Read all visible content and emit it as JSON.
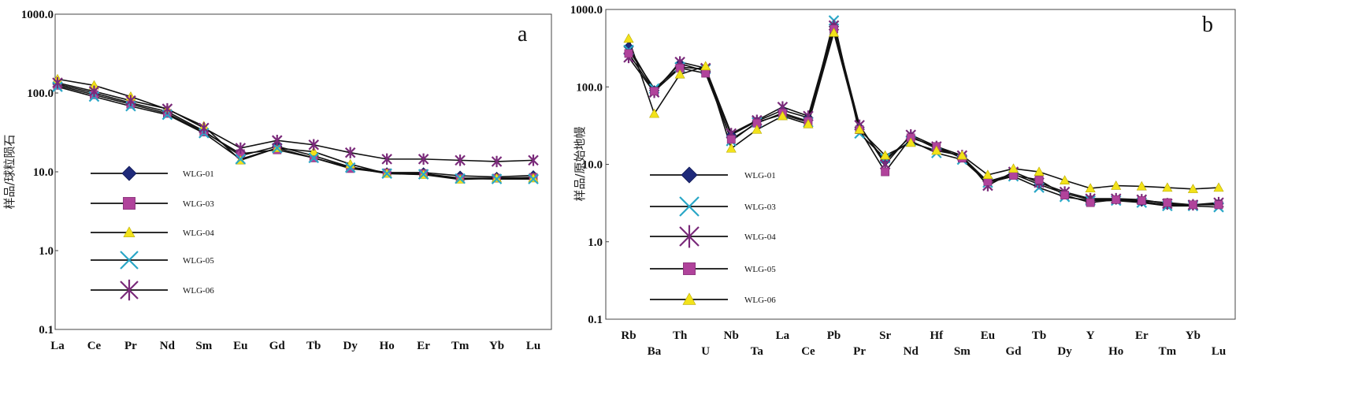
{
  "chart_data": [
    {
      "type": "line",
      "panel_label": "a",
      "ylabel": "样品/球粒陨石",
      "yscale": "log",
      "ylim": [
        0.1,
        1000
      ],
      "ytick_labels": [
        "1000.0",
        "100.0",
        "10.0",
        "1.0",
        "0.1"
      ],
      "grid": false,
      "legend_position": "bottom-left",
      "categories": [
        "La",
        "Ce",
        "Pr",
        "Nd",
        "Sm",
        "Eu",
        "Gd",
        "Tb",
        "Dy",
        "Ho",
        "Er",
        "Tm",
        "Yb",
        "Lu"
      ],
      "series": [
        {
          "name": "WLG-01",
          "marker": "diamond",
          "color": "#1f2a7a",
          "values": [
            130,
            100,
            75,
            58,
            33,
            16,
            21,
            16,
            11.5,
            9.8,
            9.8,
            8.9,
            8.6,
            9.0
          ]
        },
        {
          "name": "WLG-03",
          "marker": "square",
          "color": "#b0439b",
          "values": [
            125,
            95,
            72,
            55,
            32,
            17,
            19,
            15,
            11.0,
            9.7,
            9.5,
            8.3,
            8.3,
            8.5
          ]
        },
        {
          "name": "WLG-04",
          "marker": "triangle",
          "color": "#f2e21a",
          "values": [
            150,
            125,
            90,
            62,
            38,
            14,
            20,
            18,
            12.5,
            9.5,
            9.2,
            8.0,
            8.3,
            8.3
          ]
        },
        {
          "name": "WLG-05",
          "marker": "x",
          "color": "#2aa7c7",
          "values": [
            120,
            90,
            68,
            53,
            31,
            14.5,
            20,
            15,
            11.3,
            9.5,
            9.3,
            8.2,
            8.1,
            8.1
          ]
        },
        {
          "name": "WLG-06",
          "marker": "asterisk",
          "color": "#7a2a7a",
          "values": [
            135,
            105,
            80,
            63,
            36,
            20,
            25,
            22,
            17.5,
            14.5,
            14.5,
            14,
            13.5,
            14
          ]
        }
      ]
    },
    {
      "type": "line",
      "panel_label": "b",
      "ylabel": "样品/原始地幔",
      "yscale": "log",
      "ylim": [
        0.1,
        1000
      ],
      "ytick_labels": [
        "1000.0",
        "100.0",
        "10.0",
        "1.0",
        "0.1"
      ],
      "grid": false,
      "legend_position": "bottom-left",
      "categories": [
        "Rb",
        "Ba",
        "Th",
        "U",
        "Nb",
        "Ta",
        "La",
        "Ce",
        "Pb",
        "Pr",
        "Sr",
        "Nd",
        "Hf",
        "Sm",
        "Eu",
        "Gd",
        "Tb",
        "Dy",
        "Y",
        "Ho",
        "Er",
        "Tm",
        "Yb",
        "Lu"
      ],
      "series": [
        {
          "name": "WLG-01",
          "marker": "diamond",
          "color": "#1f2a7a",
          "values": [
            330,
            90,
            200,
            160,
            24,
            36,
            50,
            40,
            600,
            30,
            11,
            23,
            16,
            12.5,
            6.0,
            7.5,
            5.5,
            4.2,
            3.5,
            3.5,
            3.3,
            3.0,
            3.0,
            3.1
          ]
        },
        {
          "name": "WLG-03",
          "marker": "x",
          "color": "#2aa7c7",
          "values": [
            300,
            95,
            180,
            170,
            20,
            35,
            44,
            35,
            720,
            25,
            12,
            20,
            14,
            11.5,
            5.8,
            7.0,
            5.0,
            3.8,
            3.4,
            3.4,
            3.2,
            2.9,
            2.9,
            2.8
          ]
        },
        {
          "name": "WLG-04",
          "marker": "asterisk",
          "color": "#7a2a7a",
          "values": [
            240,
            85,
            210,
            175,
            25,
            37,
            55,
            42,
            620,
            32,
            10,
            24,
            17,
            13,
            5.3,
            8.0,
            5.8,
            4.4,
            3.6,
            3.6,
            3.5,
            3.1,
            3.0,
            3.2
          ]
        },
        {
          "name": "WLG-05",
          "marker": "square",
          "color": "#b0439b",
          "values": [
            270,
            88,
            175,
            150,
            21,
            34,
            46,
            36,
            560,
            28,
            8,
            22,
            17,
            12,
            6.0,
            7.2,
            6.3,
            4.0,
            3.2,
            3.5,
            3.4,
            3.2,
            3.0,
            3.0
          ]
        },
        {
          "name": "WLG-06",
          "marker": "triangle",
          "color": "#f2e21a",
          "values": [
            420,
            45,
            145,
            185,
            16,
            28,
            42,
            33,
            500,
            28,
            13,
            19,
            15,
            13,
            7.3,
            8.8,
            8.0,
            6.2,
            4.9,
            5.3,
            5.2,
            5.0,
            4.8,
            5.0
          ]
        }
      ]
    }
  ]
}
